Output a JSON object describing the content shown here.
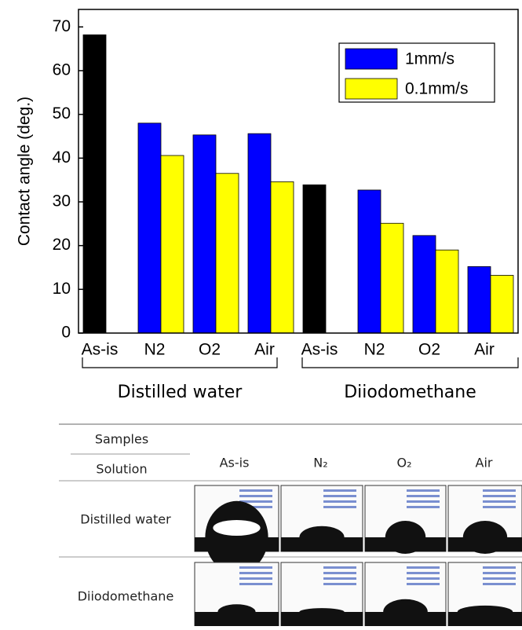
{
  "chart_data": {
    "type": "bar",
    "y_label": "Contact angle (deg.)",
    "categories": [
      "As-is",
      "N2",
      "O2",
      "Air",
      "As-is",
      "N2",
      "O2",
      "Air"
    ],
    "groups": [
      {
        "name": "Distilled water",
        "size": 4
      },
      {
        "name": "Diiodomethane",
        "size": 4
      }
    ],
    "series": [
      {
        "name": "1mm/s",
        "color": "#0000ff",
        "colors": [
          "#000000",
          "#0000ff",
          "#0000ff",
          "#0000ff",
          "#000000",
          "#0000ff",
          "#0000ff",
          "#0000ff"
        ],
        "values": [
          68.2,
          48.0,
          45.3,
          45.6,
          33.9,
          32.7,
          22.3,
          15.2
        ]
      },
      {
        "name": "0.1mm/s",
        "color": "#ffff00",
        "values": [
          null,
          40.6,
          36.5,
          34.6,
          null,
          25.1,
          19.0,
          13.2
        ]
      }
    ],
    "ylim": [
      0,
      74
    ],
    "yticks": [
      0,
      10,
      20,
      30,
      40,
      50,
      60,
      70
    ],
    "legend": "upper right"
  },
  "table": {
    "header": {
      "top": "Samples",
      "bottom": "Solution",
      "columns": [
        "As-is",
        "N₂",
        "O₂",
        "Air"
      ]
    },
    "rows": [
      "Distilled water",
      "Diiodomethane"
    ]
  }
}
